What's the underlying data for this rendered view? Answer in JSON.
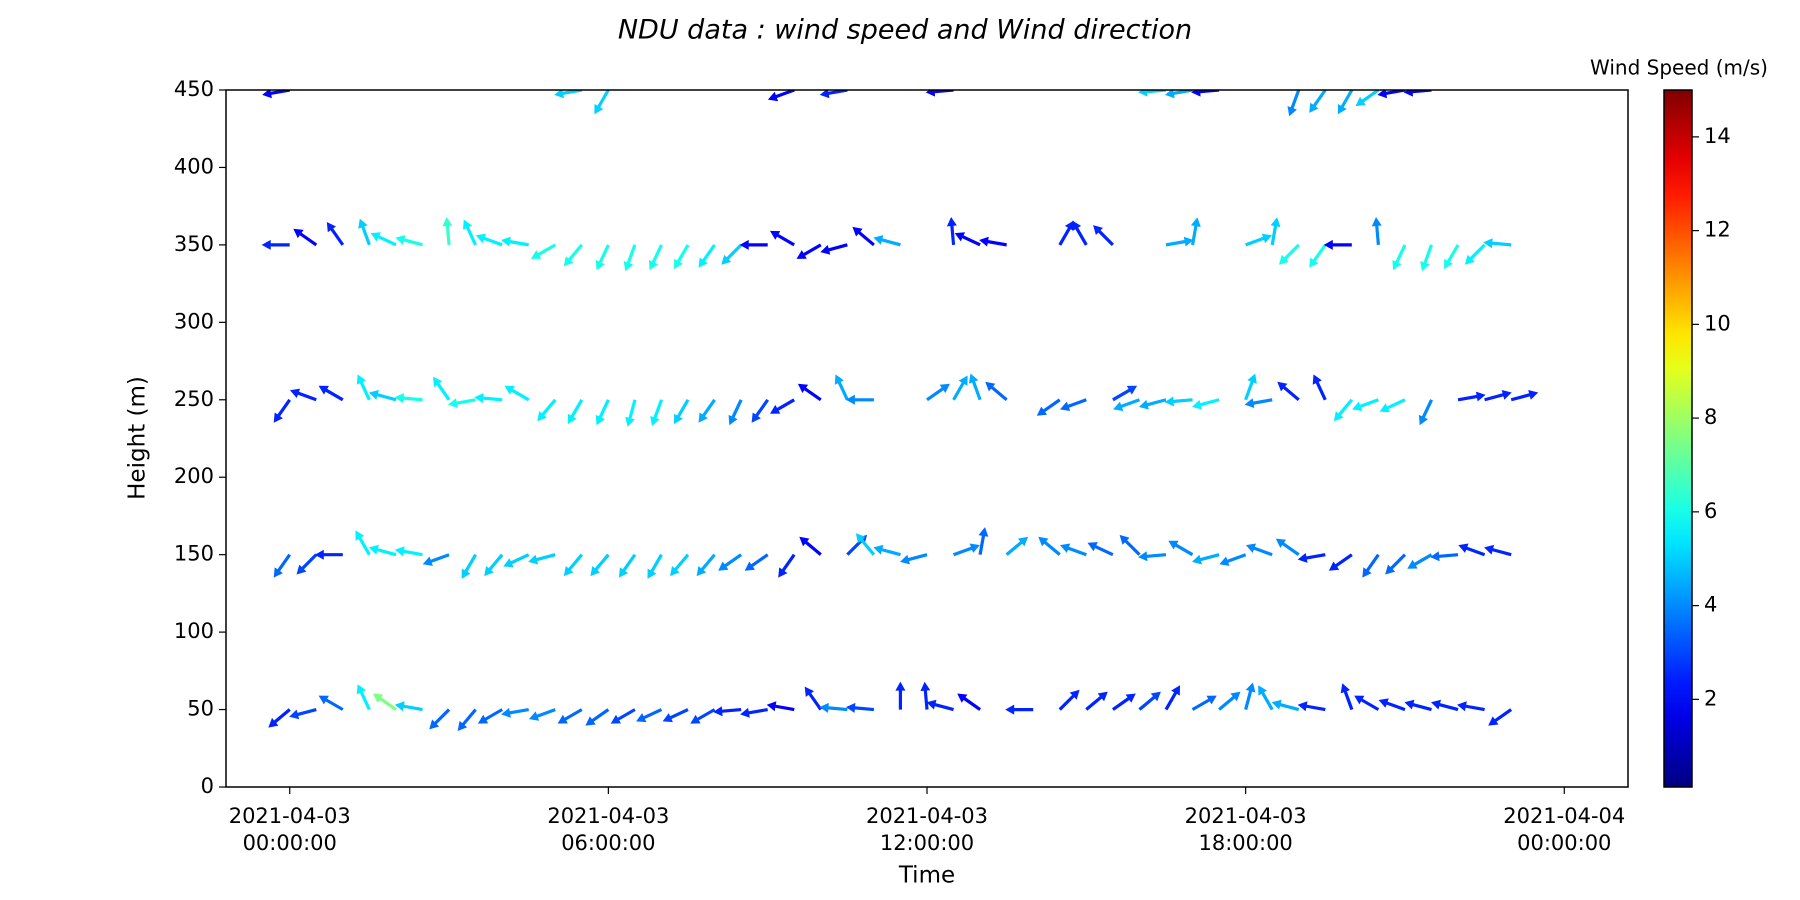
{
  "chart_data": {
    "type": "quiver",
    "title": "NDU data : wind speed and Wind direction",
    "xlabel": "Time",
    "ylabel": "Height (m)",
    "colorbar_label": "Wind Speed (m/s)",
    "colormap": "jet",
    "x": [
      "2021-04-03 00:00:00",
      "2021-04-03 00:30:00",
      "2021-04-03 01:00:00",
      "2021-04-03 01:30:00",
      "2021-04-03 02:00:00",
      "2021-04-03 02:30:00",
      "2021-04-03 03:00:00",
      "2021-04-03 03:30:00",
      "2021-04-03 04:00:00",
      "2021-04-03 04:30:00",
      "2021-04-03 05:00:00",
      "2021-04-03 05:30:00",
      "2021-04-03 06:00:00",
      "2021-04-03 06:30:00",
      "2021-04-03 07:00:00",
      "2021-04-03 07:30:00",
      "2021-04-03 08:00:00",
      "2021-04-03 08:30:00",
      "2021-04-03 09:00:00",
      "2021-04-03 09:30:00",
      "2021-04-03 10:00:00",
      "2021-04-03 10:30:00",
      "2021-04-03 11:00:00",
      "2021-04-03 11:30:00",
      "2021-04-03 12:00:00",
      "2021-04-03 12:30:00",
      "2021-04-03 13:00:00",
      "2021-04-03 13:30:00",
      "2021-04-03 14:00:00",
      "2021-04-03 14:30:00",
      "2021-04-03 15:00:00",
      "2021-04-03 15:30:00",
      "2021-04-03 16:00:00",
      "2021-04-03 16:30:00",
      "2021-04-03 17:00:00",
      "2021-04-03 17:30:00",
      "2021-04-03 18:00:00",
      "2021-04-03 18:30:00",
      "2021-04-03 19:00:00",
      "2021-04-03 19:30:00",
      "2021-04-03 20:00:00",
      "2021-04-03 20:30:00",
      "2021-04-03 21:00:00",
      "2021-04-03 21:30:00",
      "2021-04-03 22:00:00",
      "2021-04-03 22:30:00",
      "2021-04-03 23:00:00"
    ],
    "rows": [
      {
        "height": 50,
        "angle": [
          220,
          195,
          150,
          115,
          145,
          170,
          225,
          230,
          210,
          190,
          200,
          210,
          215,
          210,
          205,
          205,
          210,
          185,
          190,
          170,
          125,
          175,
          175,
          90,
          95,
          165,
          145,
          null,
          180,
          45,
          40,
          35,
          40,
          60,
          30,
          40,
          75,
          120,
          165,
          170,
          110,
          150,
          160,
          165,
          165,
          170,
          215
        ],
        "speed": [
          2.5,
          3,
          3.5,
          5.5,
          7.5,
          5,
          3.5,
          3.5,
          3.5,
          4,
          4,
          3.5,
          3.5,
          3,
          3.5,
          3,
          3,
          2.5,
          2.5,
          2,
          2.5,
          4,
          3,
          2.5,
          2.5,
          2.5,
          2,
          null,
          2.5,
          2.5,
          2.5,
          2.5,
          3,
          2.5,
          3.5,
          4,
          4,
          4.5,
          4.5,
          2.5,
          2.5,
          2.5,
          2.5,
          2.5,
          2.5,
          2.5,
          2.5
        ]
      },
      {
        "height": 150,
        "angle": [
          235,
          225,
          180,
          120,
          165,
          170,
          200,
          240,
          230,
          205,
          195,
          230,
          230,
          235,
          240,
          230,
          230,
          215,
          215,
          235,
          140,
          45,
          130,
          165,
          195,
          20,
          80,
          40,
          null,
          140,
          160,
          155,
          135,
          185,
          150,
          195,
          200,
          160,
          145,
          190,
          215,
          235,
          225,
          210,
          185,
          160,
          165
        ],
        "speed": [
          3.5,
          3,
          2.5,
          5.5,
          5.5,
          5.5,
          4,
          5,
          5,
          5,
          5,
          5,
          5,
          5,
          5,
          5,
          4.5,
          4,
          3.5,
          2.5,
          2,
          3,
          5,
          4.5,
          4,
          4,
          3.5,
          4.5,
          null,
          4,
          4,
          3.5,
          3.5,
          4,
          4,
          4.5,
          4,
          4,
          4,
          2.5,
          2.5,
          3.5,
          3.5,
          4,
          3.5,
          2.5,
          2.5
        ]
      },
      {
        "height": 250,
        "angle": [
          235,
          160,
          150,
          115,
          165,
          175,
          125,
          190,
          175,
          150,
          230,
          240,
          245,
          255,
          250,
          240,
          235,
          245,
          235,
          210,
          145,
          115,
          180,
          null,
          35,
          60,
          110,
          140,
          null,
          215,
          200,
          30,
          200,
          195,
          185,
          195,
          70,
          190,
          140,
          115,
          230,
          200,
          205,
          245,
          10,
          15,
          15
        ],
        "speed": [
          2.5,
          2.5,
          2.5,
          5.5,
          5,
          6,
          5.5,
          6,
          5.5,
          5.5,
          5.5,
          5.5,
          5.5,
          5.5,
          5.5,
          5,
          4.5,
          4,
          3,
          2.5,
          2,
          4.5,
          4,
          null,
          4,
          4.5,
          4.5,
          3.5,
          null,
          3.5,
          3.5,
          3,
          4.5,
          4.5,
          5,
          5.5,
          5,
          4,
          2.5,
          2.5,
          5.5,
          5.5,
          5.5,
          4,
          2.5,
          2.5,
          2.5
        ]
      },
      {
        "height": 350,
        "angle": [
          180,
          145,
          125,
          110,
          155,
          165,
          95,
          115,
          160,
          170,
          210,
          230,
          245,
          250,
          245,
          240,
          235,
          225,
          180,
          150,
          210,
          195,
          140,
          165,
          null,
          95,
          155,
          170,
          null,
          60,
          120,
          135,
          null,
          10,
          80,
          null,
          20,
          80,
          225,
          235,
          180,
          95,
          245,
          250,
          240,
          225,
          175
        ],
        "speed": [
          2.5,
          2,
          2.5,
          5,
          5.5,
          6,
          6.5,
          5.5,
          5.5,
          5.5,
          6,
          6,
          6,
          6,
          6,
          6,
          5.5,
          5,
          2,
          2,
          2,
          2,
          2,
          4.5,
          null,
          2.5,
          2,
          2,
          null,
          2.5,
          2.5,
          2.5,
          null,
          4.5,
          4.5,
          null,
          5,
          5,
          6,
          6,
          2,
          4,
          6,
          6,
          6,
          5.5,
          5
        ]
      },
      {
        "height": 450,
        "angle": [
          190,
          null,
          null,
          null,
          null,
          null,
          null,
          null,
          null,
          null,
          null,
          190,
          240,
          null,
          null,
          null,
          null,
          null,
          null,
          200,
          null,
          190,
          null,
          null,
          null,
          185,
          null,
          null,
          null,
          null,
          null,
          null,
          null,
          185,
          190,
          185,
          null,
          null,
          250,
          235,
          240,
          215,
          190,
          185,
          null,
          null,
          null
        ],
        "speed": [
          2,
          null,
          null,
          null,
          null,
          null,
          null,
          null,
          null,
          null,
          null,
          5,
          5,
          null,
          null,
          null,
          null,
          null,
          null,
          2,
          null,
          2.5,
          null,
          null,
          null,
          2,
          null,
          null,
          null,
          null,
          null,
          null,
          null,
          5,
          4.5,
          2,
          null,
          null,
          4,
          4.5,
          4.5,
          5,
          2,
          2,
          null,
          null,
          null
        ]
      }
    ],
    "xlim": [
      "2021-04-02 22:48:00",
      "2021-04-04 01:12:00"
    ],
    "xticks": [
      "2021-04-03 00:00:00",
      "2021-04-03 06:00:00",
      "2021-04-03 12:00:00",
      "2021-04-03 18:00:00",
      "2021-04-04 00:00:00"
    ],
    "ylim": [
      0,
      450
    ],
    "yticks": [
      0,
      50,
      100,
      150,
      200,
      250,
      300,
      350,
      400,
      450
    ],
    "clim": [
      0.13,
      15.0
    ],
    "cticks": [
      2,
      4,
      6,
      8,
      10,
      12,
      14
    ]
  }
}
